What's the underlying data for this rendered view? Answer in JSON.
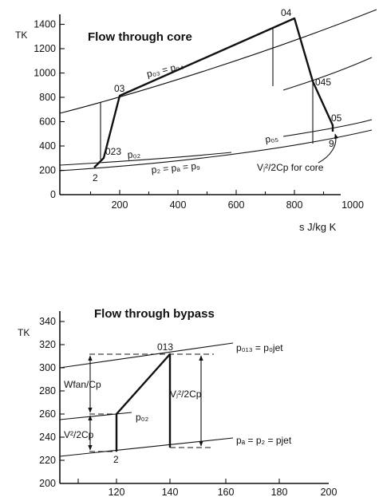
{
  "core": {
    "title": "Flow through core",
    "y_axis_label": "TK",
    "x_axis_label": "s  J/kg K",
    "y_ticks": [
      "0",
      "200",
      "400",
      "600",
      "800",
      "1000",
      "1200",
      "1400"
    ],
    "x_ticks": [
      "200",
      "400",
      "600",
      "800",
      "1000"
    ],
    "points": {
      "p03": "03",
      "p04": "04",
      "p023": "023",
      "p2": "2",
      "p045": "045",
      "p05": "05",
      "p9": "9"
    },
    "isobars": {
      "p03_p04": "p₀₃ = p₀₄",
      "p02": "p₀₂",
      "p2_pa_p9": "p₂ = pₐ = p₉",
      "p05": "p₀₅"
    },
    "annotation": "Vⱼ²/2Cp for core"
  },
  "bypass": {
    "title": "Flow through bypass",
    "y_axis_label": "TK",
    "y_ticks": [
      "200",
      "220",
      "240",
      "260",
      "280",
      "300",
      "320",
      "340"
    ],
    "x_ticks": [
      "120",
      "140",
      "160",
      "180",
      "200"
    ],
    "points": {
      "p013": "013",
      "p2": "2"
    },
    "isobars": {
      "p013_p0jet": "p₀₁₃ = p₀jet",
      "p02": "p₀₂",
      "pa_p2_pjet": "pₐ = p₂ = pjet"
    },
    "annotations": {
      "wfan": "Wfan/Cp",
      "v2_2cp": "V²/2Cp",
      "vj2_2cp": "Vⱼ²/2Cp"
    }
  }
}
